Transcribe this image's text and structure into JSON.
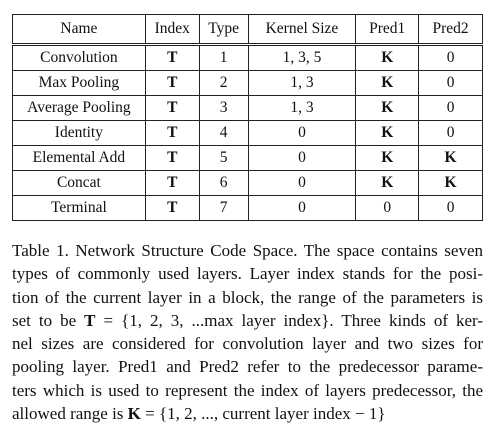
{
  "table": {
    "headers": [
      "Name",
      "Index",
      "Type",
      "Kernel Size",
      "Pred1",
      "Pred2"
    ],
    "rows": [
      [
        "Convolution",
        "T",
        "1",
        "1, 3, 5",
        "K",
        "0"
      ],
      [
        "Max Pooling",
        "T",
        "2",
        "1, 3",
        "K",
        "0"
      ],
      [
        "Average Pooling",
        "T",
        "3",
        "1, 3",
        "K",
        "0"
      ],
      [
        "Identity",
        "T",
        "4",
        "0",
        "K",
        "0"
      ],
      [
        "Elemental Add",
        "T",
        "5",
        "0",
        "K",
        "K"
      ],
      [
        "Concat",
        "T",
        "6",
        "0",
        "K",
        "K"
      ],
      [
        "Terminal",
        "T",
        "7",
        "0",
        "0",
        "0"
      ]
    ]
  },
  "caption": {
    "line1": "Table 1. Network Structure Code Space. The space contains seven",
    "line2": "types of commonly used layers.  Layer index stands for the posi-",
    "line3": "tion of the current layer in a block, the range of the parameters is",
    "line4_pre": "set to be ",
    "line4_T": "T",
    "line4_post": " = {1, 2, 3, ...max layer index}.  Three kinds of ker-",
    "line5": "nel sizes are considered for convolution layer and two sizes for",
    "line6": "pooling layer.  Pred1 and Pred2 refer to the predecessor parame-",
    "line7": "ters which is used to represent the index of layers predecessor, the",
    "line8_pre": "allowed range is ",
    "line8_K": "K",
    "line8_post": " = {1, 2, ..., current layer index − 1}"
  }
}
